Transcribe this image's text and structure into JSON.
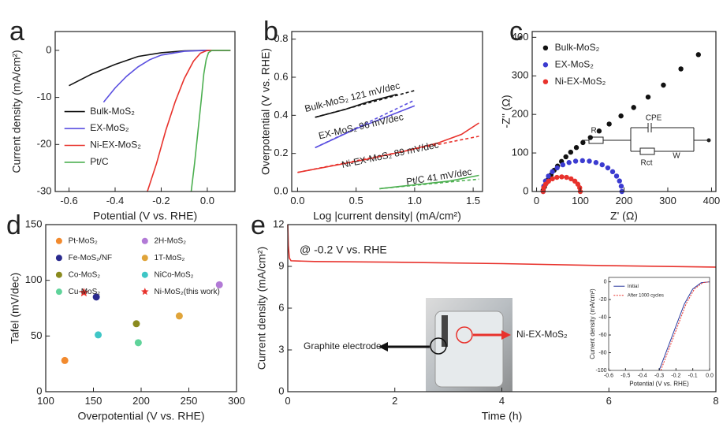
{
  "chart_data": [
    {
      "type": "line",
      "panel_label": "a",
      "xlabel": "Potential (V vs. RHE)",
      "ylabel": "Current density (mA/cm²)",
      "xlim": [
        -0.66,
        0.12
      ],
      "ylim": [
        -30,
        4
      ],
      "xticks": [
        -0.6,
        -0.4,
        -0.2,
        {
          "value": 0,
          "label": "0.0"
        }
      ],
      "yticks": [
        -30,
        -20,
        -10,
        0
      ],
      "legend": "lower left",
      "series": [
        {
          "name": "Bulk-MoS₂",
          "color": "#111111",
          "x": [
            -0.6,
            -0.5,
            -0.4,
            -0.3,
            -0.2,
            -0.1,
            0,
            0.1
          ],
          "values": [
            -7.5,
            -5,
            -3,
            -1.3,
            -0.5,
            -0.1,
            0,
            0
          ]
        },
        {
          "name": "EX-MoS₂",
          "color": "#5a4fe0",
          "x": [
            -0.45,
            -0.4,
            -0.35,
            -0.3,
            -0.25,
            -0.2,
            -0.1,
            0,
            0.1
          ],
          "values": [
            -11,
            -8,
            -5.5,
            -3.5,
            -2,
            -1,
            -0.2,
            0,
            0
          ]
        },
        {
          "name": "Ni-EX-MoS₂",
          "color": "#e8322c",
          "x": [
            -0.26,
            -0.22,
            -0.18,
            -0.14,
            -0.1,
            -0.06,
            -0.03,
            0,
            0.1
          ],
          "values": [
            -30,
            -24,
            -17,
            -11,
            -6,
            -2.3,
            -0.6,
            0,
            0
          ]
        },
        {
          "name": "Pt/C",
          "color": "#4caf50",
          "x": [
            -0.07,
            -0.055,
            -0.04,
            -0.025,
            -0.015,
            -0.005,
            0.005,
            0.02,
            0.1
          ],
          "values": [
            -30,
            -24,
            -17,
            -10,
            -5,
            -2,
            -0.5,
            0,
            0
          ]
        }
      ]
    },
    {
      "type": "line",
      "panel_label": "b",
      "xlabel": "Log |current density| (mA/cm²)",
      "ylabel": "Overpotential (V vs. RHE)",
      "xlim": [
        -0.05,
        1.58
      ],
      "ylim": [
        0,
        0.84
      ],
      "xticks": [
        {
          "value": 0,
          "label": "0.0"
        },
        0.5,
        {
          "value": 1,
          "label": "1.0"
        },
        1.5
      ],
      "yticks": [
        {
          "value": 0,
          "label": "0.0"
        },
        0.2,
        0.4,
        0.6,
        0.8
      ],
      "series": [
        {
          "color": "#111111",
          "x": [
            0.15,
            0.4,
            0.6,
            0.85
          ],
          "values": [
            0.39,
            0.43,
            0.47,
            0.51
          ]
        },
        {
          "color": "#111111",
          "dash": true,
          "x": [
            0.15,
            1.0
          ],
          "values": [
            0.39,
            0.53
          ]
        },
        {
          "color": "#5a4fe0",
          "x": [
            0.15,
            0.5,
            1.0
          ],
          "values": [
            0.23,
            0.33,
            0.45
          ]
        },
        {
          "color": "#5a4fe0",
          "dash": true,
          "x": [
            0.15,
            1.0
          ],
          "values": [
            0.23,
            0.48
          ]
        },
        {
          "color": "#e8322c",
          "x": [
            0,
            0.3,
            0.6,
            0.9,
            1.2,
            1.4,
            1.55
          ],
          "values": [
            0.1,
            0.135,
            0.17,
            0.21,
            0.255,
            0.3,
            0.36
          ]
        },
        {
          "color": "#e8322c",
          "dash": true,
          "x": [
            0,
            1.55
          ],
          "values": [
            0.1,
            0.29
          ]
        },
        {
          "color": "#4caf50",
          "x": [
            0.7,
            1.0,
            1.3,
            1.55
          ],
          "values": [
            0.015,
            0.035,
            0.055,
            0.085
          ]
        },
        {
          "color": "#4caf50",
          "dash": true,
          "x": [
            0.7,
            1.55
          ],
          "values": [
            0.015,
            0.065
          ]
        }
      ],
      "annotations": [
        {
          "text": "Bulk-MoS₂ 121 mV/dec",
          "color": "#111111"
        },
        {
          "text": "EX-MoS₂ 96 mV/dec",
          "color": "#5a4fe0"
        },
        {
          "text": "Ni-EX-MoS₂ 89 mV/dec",
          "color": "#e8322c"
        },
        {
          "text": "Pt/C 41 mV/dec",
          "color": "#4caf50"
        }
      ]
    },
    {
      "type": "scatter",
      "panel_label": "c",
      "xlabel": "Z' (Ω)",
      "ylabel": "-Z'' (Ω)",
      "xlim": [
        -10,
        410
      ],
      "ylim": [
        0,
        415
      ],
      "xticks": [
        0,
        100,
        200,
        300,
        400
      ],
      "yticks": [
        0,
        100,
        200,
        300,
        400
      ],
      "legend": "upper left",
      "series": [
        {
          "name": "Bulk-MoS₂",
          "color": "#111111",
          "x": [
            15,
            18,
            22,
            27,
            33,
            40,
            48,
            57,
            67,
            78,
            91,
            106,
            123,
            143,
            166,
            193,
            222,
            255,
            290,
            330,
            370
          ],
          "values": [
            3,
            12,
            22,
            32,
            43,
            55,
            66,
            78,
            90,
            102,
            114,
            127,
            140,
            157,
            175,
            196,
            218,
            245,
            276,
            318,
            355
          ]
        },
        {
          "name": "EX-MoS₂",
          "color": "#3b3bd0",
          "x": [
            15,
            16.4,
            20.4,
            27.1,
            36.1,
            47.1,
            60,
            74.2,
            89.3,
            105,
            120.7,
            135.8,
            150,
            162.9,
            173.9,
            182.9,
            189.6,
            193.6,
            195
          ],
          "values": [
            0,
            13.9,
            27.4,
            40,
            51.4,
            61.3,
            69.3,
            75.2,
            78.8,
            80,
            78.8,
            75.2,
            69.3,
            61.3,
            51.4,
            40,
            27.4,
            13.9,
            0
          ]
        },
        {
          "name": "Ni-EX-MoS₂",
          "color": "#e8322c",
          "x": [
            15,
            16.4,
            20.7,
            27.4,
            36.3,
            46.5,
            57.5,
            68.5,
            78.8,
            87.6,
            94.3,
            98.6,
            100
          ],
          "values": [
            0,
            9.8,
            19,
            26.9,
            32.9,
            36.7,
            38,
            36.7,
            32.9,
            26.9,
            19,
            9.8,
            0
          ]
        }
      ],
      "annotations": [
        {
          "text": "Rₛ",
          "color": "#222222"
        },
        {
          "text": "CPE",
          "color": "#222222"
        },
        {
          "text": "Rct",
          "color": "#222222"
        },
        {
          "text": "W",
          "color": "#222222"
        }
      ]
    },
    {
      "type": "scatter",
      "panel_label": "d",
      "xlabel": "Overpotential (V vs. RHE)",
      "ylabel": "Tafel (mV/dec)",
      "xlim": [
        100,
        300
      ],
      "ylim": [
        0,
        150
      ],
      "xticks": [
        100,
        150,
        200,
        250,
        300
      ],
      "yticks": [
        0,
        50,
        100,
        150
      ],
      "legend": "upper left",
      "legend_columns": 2,
      "series": [
        {
          "name": "Pt-MoS₂",
          "color": "#f28a2e",
          "marker": "circle",
          "x": [
            120
          ],
          "values": [
            28
          ]
        },
        {
          "name": "Fe-MoS₂/NF",
          "color": "#2a2a8e",
          "marker": "circle",
          "x": [
            153
          ],
          "values": [
            85
          ]
        },
        {
          "name": "Co-MoS₂",
          "color": "#8a8a1e",
          "marker": "circle",
          "x": [
            195
          ],
          "values": [
            61
          ]
        },
        {
          "name": "Cu-MoS₂",
          "color": "#5fd39a",
          "marker": "circle",
          "x": [
            197
          ],
          "values": [
            44
          ]
        },
        {
          "name": "2H-MoS₂",
          "color": "#b27ad6",
          "marker": "circle",
          "x": [
            282
          ],
          "values": [
            96
          ]
        },
        {
          "name": "1T-MoS₂",
          "color": "#e0a43a",
          "marker": "circle",
          "x": [
            240
          ],
          "values": [
            68
          ]
        },
        {
          "name": "NiCo-MoS₂",
          "color": "#3fc6c6",
          "marker": "circle",
          "x": [
            155
          ],
          "values": [
            51
          ]
        },
        {
          "name": "Ni-MoS₂(this work)",
          "color": "#e8322c",
          "marker": "star",
          "x": [
            140
          ],
          "values": [
            89
          ]
        }
      ]
    },
    {
      "type": "line",
      "panel_label": "e",
      "xlabel": "Time (h)",
      "ylabel": "Current density (mA/cm²)",
      "xlim": [
        0,
        8
      ],
      "ylim": [
        0,
        12
      ],
      "xticks": [
        0,
        2,
        4,
        6,
        8
      ],
      "yticks": [
        0,
        3,
        6,
        9,
        12
      ],
      "series": [
        {
          "color": "#e8322c",
          "x": [
            0,
            0.01,
            0.03,
            0.06,
            0.5,
            2,
            4,
            6,
            8
          ],
          "values": [
            12,
            10.5,
            9.6,
            9.4,
            9.35,
            9.3,
            9.2,
            9.05,
            8.95
          ]
        }
      ],
      "annotations": [
        {
          "text": "@ -0.2 V vs. RHE",
          "color": "#222222"
        },
        {
          "text": "Graphite electrode",
          "color": "#222222"
        },
        {
          "text": "Ni-EX-MoS₂",
          "color": "#e8322c"
        }
      ]
    },
    {
      "type": "line",
      "xlabel": "Potential (V vs. RHE)",
      "ylabel": "Current density (mA/cm²)",
      "xlim": [
        -0.6,
        0
      ],
      "ylim": [
        -100,
        5
      ],
      "xticks": [
        -0.6,
        -0.5,
        -0.4,
        -0.3,
        -0.2,
        -0.1,
        {
          "value": 0,
          "label": "0.0"
        }
      ],
      "yticks": [
        -100,
        -80,
        -60,
        -40,
        -20,
        0
      ],
      "legend": "upper left",
      "series": [
        {
          "name": "Initial",
          "color": "#2a3a9e",
          "x": [
            -0.3,
            -0.25,
            -0.2,
            -0.15,
            -0.1,
            -0.05,
            0
          ],
          "values": [
            -100,
            -75,
            -50,
            -25,
            -8,
            -1,
            0
          ]
        },
        {
          "name": "After 1000 cycles",
          "color": "#e8322c",
          "dash": true,
          "x": [
            -0.29,
            -0.24,
            -0.19,
            -0.14,
            -0.09,
            -0.04,
            0
          ],
          "values": [
            -100,
            -75,
            -50,
            -25,
            -8,
            -1,
            0
          ]
        }
      ]
    }
  ]
}
